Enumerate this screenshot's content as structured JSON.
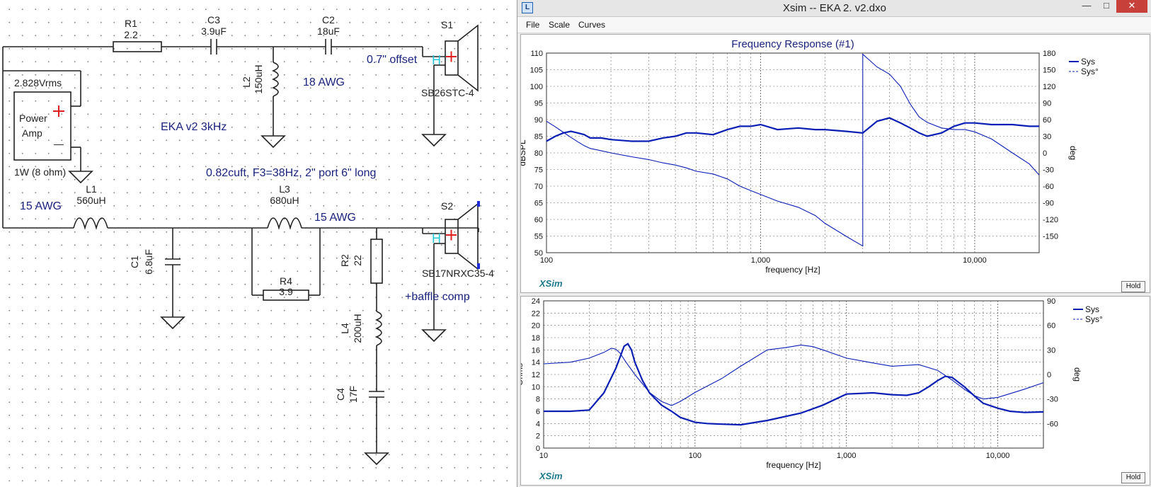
{
  "schematic": {
    "amp_voltage": "2.828Vrms",
    "amp_label_1": "Power",
    "amp_label_2": "Amp",
    "amp_power": "1W (8 ohm)",
    "plus": "+",
    "minus": "—",
    "title": "EKA v2  3kHz",
    "box_note": "0.82cuft, F3=38Hz, 2\" port  6\" long",
    "wire_tw": "18 AWG",
    "wire_l1": "15 AWG",
    "wire_l3": "15 AWG",
    "offset": "0.7\" offset",
    "baffle": "+baffle comp",
    "h1": "H",
    "h2": "H",
    "components": {
      "R1_name": "R1",
      "R1_val": "2.2",
      "C3_name": "C3",
      "C3_val": "3.9uF",
      "C2_name": "C2",
      "C2_val": "18uF",
      "L2_name": "L2",
      "L2_val": "150uH",
      "L1_name": "L1",
      "L1_val": "560uH",
      "L3_name": "L3",
      "L3_val": "680uH",
      "C1_name": "C1",
      "C1_val": "6.8uF",
      "R4_name": "R4",
      "R4_val": "3.9",
      "R2_name": "R2",
      "R2_val": "22",
      "L4_name": "L4",
      "L4_val": "200uH",
      "C4_name": "C4",
      "C4_val": "17F",
      "S1_name": "S1",
      "S1_model": "SB26STC-4",
      "S2_name": "S2",
      "S2_model": "SB17NRXC35-4"
    }
  },
  "window": {
    "title": "Xsim -- EKA 2. v2.dxo",
    "app_icon": "L",
    "controls": [
      "—",
      "□",
      "✕"
    ],
    "menu": [
      "File",
      "Scale",
      "Curves"
    ],
    "brand": "XSim",
    "hold": "Hold"
  },
  "colors": {
    "trace": "#0b1fb5",
    "title": "#1a237e",
    "brand": "#1f7a8c"
  },
  "chart_data": [
    {
      "type": "line",
      "title": "Frequency Response (#1)",
      "xlabel": "frequency [Hz]",
      "ylabel": "dBSPL",
      "y2label": "deg",
      "x_scale": "log",
      "xlim": [
        100,
        20000
      ],
      "ylim": [
        50,
        110
      ],
      "y2lim": [
        -180,
        180
      ],
      "x_ticks": [
        "100",
        "1,000",
        "10,000"
      ],
      "y_ticks": [
        "50",
        "55",
        "60",
        "65",
        "70",
        "75",
        "80",
        "85",
        "90",
        "95",
        "100",
        "105",
        "110"
      ],
      "y2_ticks": [
        "-150",
        "-120",
        "-90",
        "-60",
        "-30",
        "0",
        "30",
        "60",
        "90",
        "120",
        "150",
        "180"
      ],
      "grid": true,
      "legend_position": "top-right",
      "series": [
        {
          "name": "Sys",
          "axis": "left",
          "style": "solid",
          "x": [
            100,
            110,
            120,
            130,
            140,
            150,
            160,
            180,
            200,
            250,
            300,
            350,
            400,
            450,
            500,
            600,
            700,
            800,
            900,
            1000,
            1200,
            1500,
            1800,
            2000,
            2500,
            3000,
            3500,
            4000,
            4500,
            5000,
            5500,
            6000,
            7000,
            8000,
            9000,
            10000,
            12000,
            15000,
            18000,
            20000
          ],
          "y": [
            83.5,
            85,
            86,
            86.5,
            86,
            85.5,
            84.5,
            84.5,
            84,
            83.5,
            83.5,
            84.5,
            85,
            86,
            86,
            85.5,
            87,
            88,
            88,
            88.5,
            87,
            87.5,
            87,
            87,
            86.5,
            86,
            89.5,
            90.5,
            89,
            87.5,
            86,
            85,
            86,
            88,
            89,
            89,
            88.5,
            88.5,
            88,
            88
          ]
        },
        {
          "name": "Sys°",
          "axis": "right",
          "style": "dashed",
          "x": [
            100,
            110,
            120,
            130,
            140,
            150,
            160,
            180,
            200,
            250,
            300,
            350,
            400,
            450,
            500,
            600,
            700,
            800,
            900,
            1000,
            1200,
            1500,
            1800,
            2000,
            2500,
            3000,
            3000,
            3500,
            4000,
            4500,
            5000,
            5500,
            6000,
            7000,
            8000,
            9000,
            10000,
            12000,
            15000,
            18000,
            20000
          ],
          "y": [
            57,
            47,
            37,
            28,
            20,
            13,
            8,
            4,
            0,
            -7,
            -12,
            -18,
            -22,
            -27,
            -33,
            -38,
            -47,
            -60,
            -68,
            -75,
            -87,
            -98,
            -113,
            -127,
            -150,
            -168,
            178,
            155,
            142,
            120,
            88,
            65,
            55,
            45,
            42,
            42,
            38,
            25,
            0,
            -20,
            -40
          ]
        }
      ]
    },
    {
      "type": "line",
      "title": "",
      "xlabel": "frequency [Hz]",
      "ylabel": "Ohms",
      "y2label": "deg",
      "x_scale": "log",
      "xlim": [
        10,
        20000
      ],
      "ylim": [
        0,
        24
      ],
      "y2lim": [
        -90,
        90
      ],
      "x_ticks": [
        "10",
        "100",
        "1,000",
        "10,000"
      ],
      "y_ticks": [
        "0",
        "2",
        "4",
        "6",
        "8",
        "10",
        "12",
        "14",
        "16",
        "18",
        "20",
        "22",
        "24"
      ],
      "y2_ticks": [
        "-60",
        "-30",
        "0",
        "30",
        "60",
        "90"
      ],
      "grid": true,
      "legend_position": "top-right",
      "series": [
        {
          "name": "Sys",
          "axis": "left",
          "style": "solid",
          "x": [
            10,
            15,
            20,
            25,
            30,
            34,
            36,
            38,
            40,
            45,
            50,
            60,
            70,
            80,
            100,
            120,
            150,
            200,
            300,
            500,
            700,
            1000,
            1500,
            2000,
            2500,
            3000,
            3500,
            4000,
            4500,
            5000,
            6000,
            7000,
            8000,
            10000,
            12000,
            15000,
            20000
          ],
          "y": [
            6,
            6,
            6.2,
            9,
            13,
            16.6,
            17,
            16,
            14,
            11,
            9,
            7,
            6,
            5,
            4.2,
            4,
            3.9,
            3.8,
            4.5,
            5.7,
            7,
            8.8,
            9,
            8.7,
            8.6,
            9,
            10,
            11,
            11.7,
            11.5,
            10,
            8.5,
            7.3,
            6.5,
            6,
            5.8,
            5.9
          ]
        },
        {
          "name": "Sys°",
          "axis": "right",
          "style": "dashed",
          "x": [
            10,
            15,
            20,
            25,
            28,
            30,
            32,
            35,
            40,
            50,
            60,
            70,
            80,
            100,
            150,
            200,
            300,
            400,
            500,
            600,
            700,
            1000,
            1500,
            2000,
            3000,
            4000,
            5000,
            6000,
            7000,
            8000,
            10000,
            15000,
            20000
          ],
          "y": [
            13,
            15,
            20,
            27,
            32,
            31,
            26,
            15,
            0,
            -22,
            -33,
            -38,
            -33,
            -22,
            -5,
            10,
            30,
            33,
            36,
            34,
            30,
            20,
            14,
            10,
            12,
            5,
            -7,
            -18,
            -26,
            -30,
            -28,
            -18,
            -10
          ]
        }
      ]
    }
  ]
}
